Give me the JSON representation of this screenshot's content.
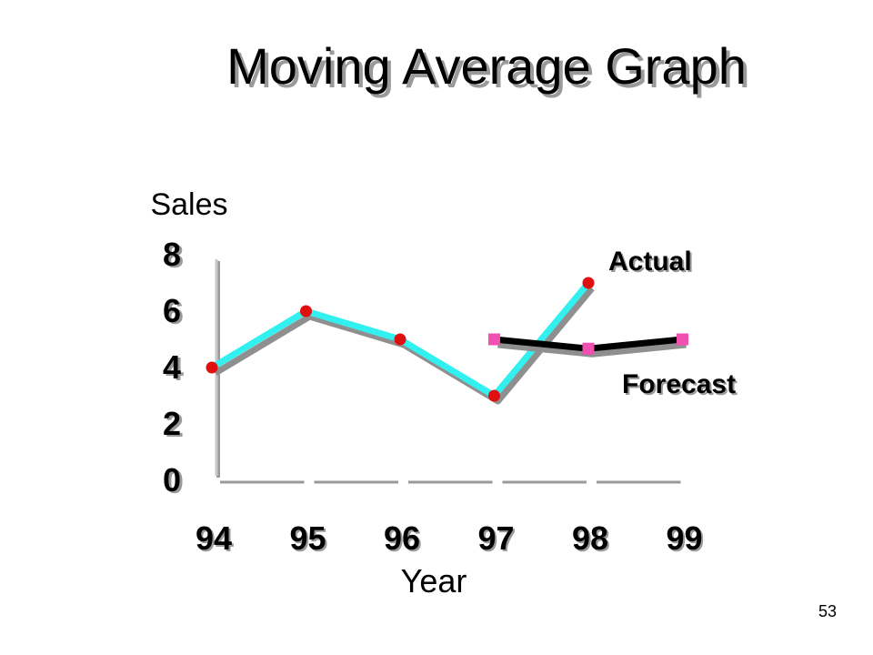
{
  "slide": {
    "title": "Moving Average Graph",
    "page_number": "53"
  },
  "chart_data": {
    "type": "line",
    "xlabel": "Year",
    "ylabel": "Sales",
    "x": [
      94,
      95,
      96,
      97,
      98,
      99
    ],
    "x_tick_labels": [
      "94",
      "95",
      "96",
      "97",
      "98",
      "99"
    ],
    "y_tick_labels": [
      "0",
      "2",
      "4",
      "6",
      "8"
    ],
    "ylim": [
      0,
      8
    ],
    "grid": false,
    "series": [
      {
        "name": "Actual",
        "x": [
          94,
          95,
          96,
          97,
          98
        ],
        "values": [
          4,
          6,
          5,
          3,
          7
        ],
        "color": "#33f0f0",
        "marker": "circle",
        "marker_color": "#e01010"
      },
      {
        "name": "Forecast",
        "x": [
          97,
          98,
          99
        ],
        "values": [
          5,
          4.67,
          5
        ],
        "color": "#000000",
        "marker": "square",
        "marker_color": "#f050b0"
      }
    ]
  }
}
